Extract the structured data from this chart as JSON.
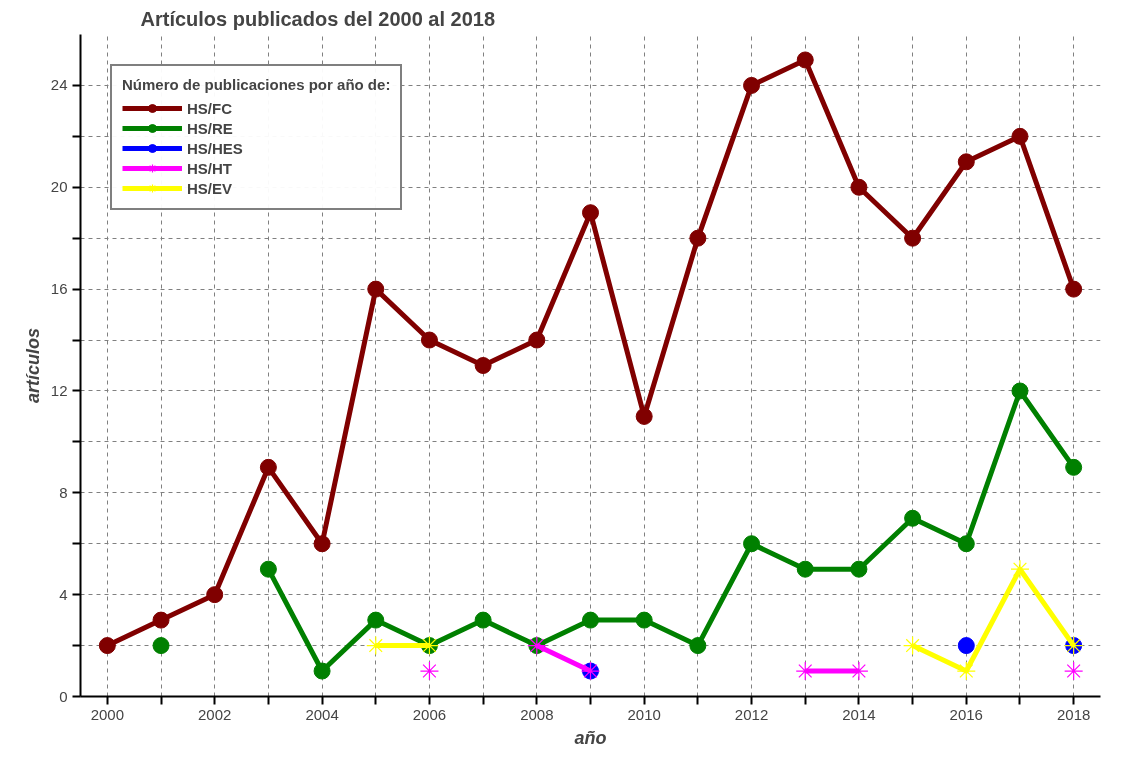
{
  "chart_data": {
    "type": "line",
    "title": "Artículos publicados del 2000 al 2018",
    "xlabel": "año",
    "ylabel": "artículos",
    "legend_title": "Número de publicaciones por año de:",
    "legend": "top left",
    "grid": true,
    "x": [
      2000,
      2001,
      2002,
      2003,
      2004,
      2005,
      2006,
      2007,
      2008,
      2009,
      2010,
      2011,
      2012,
      2013,
      2014,
      2015,
      2016,
      2017,
      2018
    ],
    "xlim": [
      1999.5,
      2018.5
    ],
    "ylim": [
      0,
      26
    ],
    "xticks": [
      2000,
      {
        "value": 2001,
        "label": null
      },
      2002,
      {
        "value": 2003,
        "label": null
      },
      2004,
      {
        "value": 2005,
        "label": null
      },
      2006,
      {
        "value": 2007,
        "label": null
      },
      2008,
      {
        "value": 2009,
        "label": null
      },
      2010,
      {
        "value": 2011,
        "label": null
      },
      2012,
      {
        "value": 2013,
        "label": null
      },
      2014,
      {
        "value": 2015,
        "label": null
      },
      2016,
      {
        "value": 2017,
        "label": null
      },
      2018
    ],
    "yticks": [
      0,
      {
        "value": 2,
        "label": null
      },
      4,
      {
        "value": 6,
        "label": null
      },
      8,
      {
        "value": 10,
        "label": null
      },
      12,
      {
        "value": 14,
        "label": null
      },
      16,
      {
        "value": 18,
        "label": null
      },
      20,
      {
        "value": 22,
        "label": null
      },
      24
    ],
    "series": [
      {
        "name": "HS/FC",
        "color": "#800000",
        "marker": "circle",
        "values": [
          2,
          3,
          4,
          9,
          6,
          16,
          14,
          13,
          14,
          19,
          11,
          18,
          24,
          25,
          20,
          18,
          21,
          22,
          16
        ]
      },
      {
        "name": "HS/RE",
        "color": "#008000",
        "marker": "circle",
        "values": [
          null,
          2,
          null,
          5,
          1,
          3,
          2,
          3,
          2,
          3,
          3,
          2,
          6,
          5,
          5,
          7,
          6,
          12,
          9
        ]
      },
      {
        "name": "HS/HES",
        "color": "#0000ff",
        "marker": "circle",
        "values": [
          null,
          null,
          null,
          null,
          null,
          null,
          null,
          null,
          null,
          1,
          null,
          null,
          null,
          null,
          null,
          null,
          2,
          null,
          2
        ]
      },
      {
        "name": "HS/HT",
        "color": "#ff00ff",
        "marker": "cross",
        "values": [
          null,
          null,
          null,
          null,
          null,
          null,
          1,
          null,
          2,
          1,
          null,
          null,
          null,
          1,
          1,
          null,
          null,
          null,
          1
        ]
      },
      {
        "name": "HS/EV",
        "color": "#ffff00",
        "marker": "cross",
        "values": [
          null,
          null,
          null,
          null,
          null,
          2,
          2,
          null,
          null,
          null,
          null,
          null,
          null,
          null,
          null,
          2,
          1,
          5,
          2
        ]
      }
    ]
  }
}
